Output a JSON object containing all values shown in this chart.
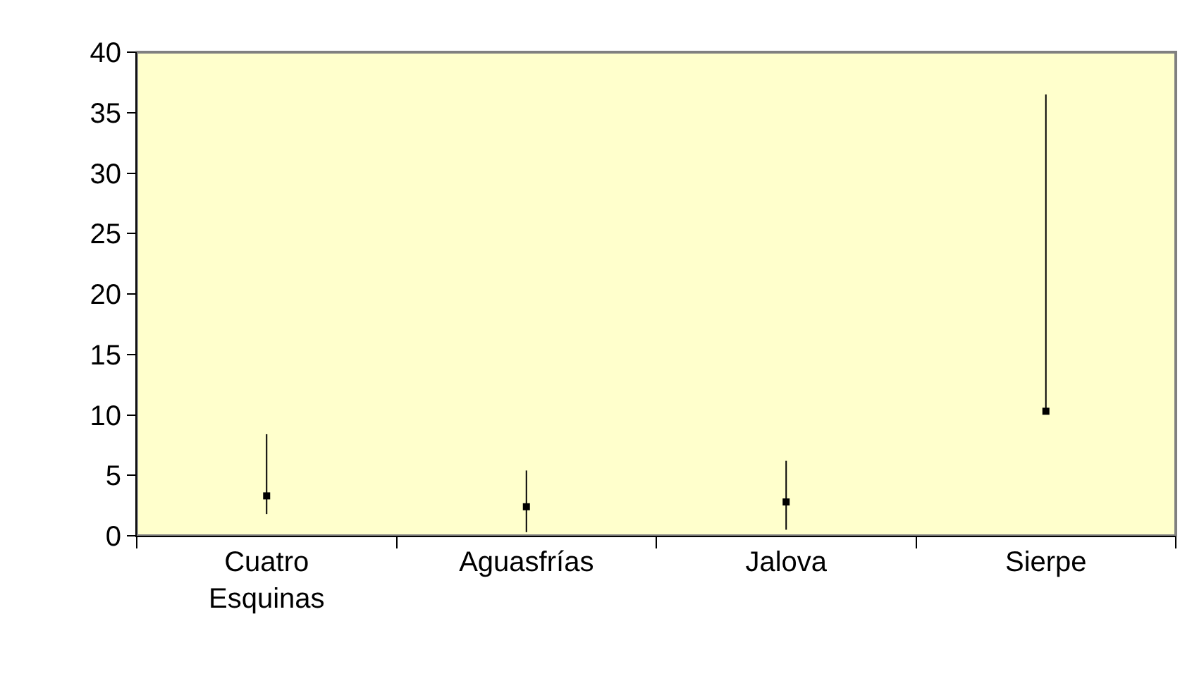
{
  "chart_data": {
    "type": "scatter",
    "categories": [
      "Cuatro Esquinas",
      "Aguasfrías",
      "Jalova",
      "Sierpe"
    ],
    "series": [
      {
        "color": "#000000",
        "values": [
          3.3,
          2.4,
          2.8,
          10.3
        ],
        "errors": [
          [
            1.8,
            8.4
          ],
          [
            0.3,
            5.4
          ],
          [
            0.5,
            6.2
          ],
          [
            10.3,
            36.5
          ]
        ]
      }
    ],
    "ylim": [
      0,
      40
    ],
    "yticks": [
      0,
      5,
      10,
      15,
      20,
      25,
      30,
      35,
      40
    ],
    "grid": false,
    "legend": false,
    "marker": "square"
  }
}
